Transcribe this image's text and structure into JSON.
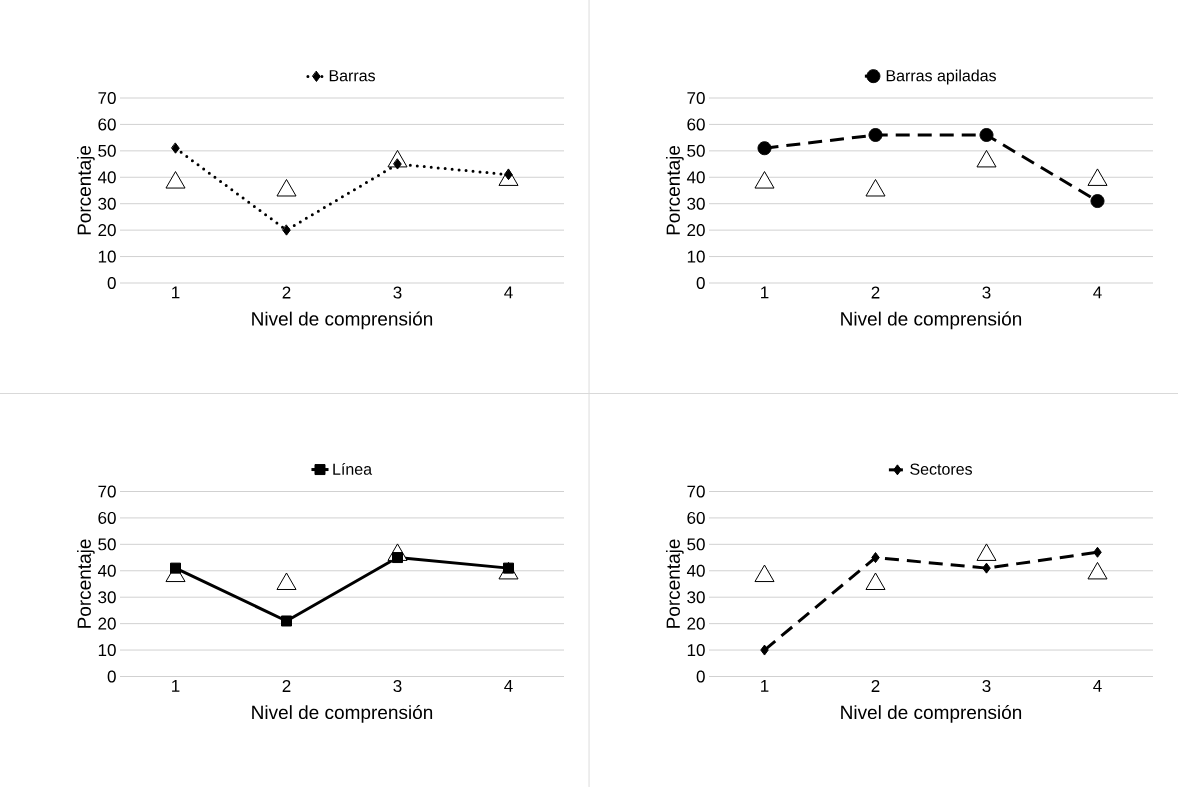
{
  "chart_data": [
    {
      "type": "line",
      "categories": [
        "1",
        "2",
        "3",
        "4"
      ],
      "xlabel": "Nivel de comprensión",
      "ylabel": "Porcentaje",
      "ylim": [
        0,
        70
      ],
      "yticks": [
        0,
        10,
        20,
        30,
        40,
        50,
        60,
        70
      ],
      "grid": "y",
      "legend": "top",
      "series": [
        {
          "type": "scatter",
          "color": "#000000",
          "marker": "triangle",
          "values": [
            38,
            35,
            46,
            39
          ]
        },
        {
          "name": "Barras",
          "color": "#000000",
          "marker": "diamond",
          "line_style": "dotted",
          "values": [
            51,
            20,
            45,
            41
          ]
        }
      ]
    },
    {
      "type": "line",
      "categories": [
        "1",
        "2",
        "3",
        "4"
      ],
      "xlabel": "Nivel de comprensión",
      "ylabel": "Porcentaje",
      "ylim": [
        0,
        70
      ],
      "yticks": [
        0,
        10,
        20,
        30,
        40,
        50,
        60,
        70
      ],
      "grid": "y",
      "legend": "top",
      "series": [
        {
          "type": "scatter",
          "color": "#000000",
          "marker": "triangle",
          "values": [
            38,
            35,
            46,
            39
          ]
        },
        {
          "name": "Barras apiladas",
          "color": "#000000",
          "marker": "circle",
          "line_style": "dashed",
          "values": [
            51,
            56,
            56,
            31
          ]
        }
      ]
    },
    {
      "type": "line",
      "categories": [
        "1",
        "2",
        "3",
        "4"
      ],
      "xlabel": "Nivel de comprensión",
      "ylabel": "Porcentaje",
      "ylim": [
        0,
        70
      ],
      "yticks": [
        0,
        10,
        20,
        30,
        40,
        50,
        60,
        70
      ],
      "grid": "y",
      "legend": "top",
      "series": [
        {
          "type": "scatter",
          "color": "#000000",
          "marker": "triangle",
          "values": [
            38,
            35,
            46,
            39
          ]
        },
        {
          "name": "Línea",
          "color": "#000000",
          "marker": "square",
          "line_style": "solid",
          "values": [
            41,
            21,
            45,
            41
          ]
        }
      ]
    },
    {
      "type": "line",
      "categories": [
        "1",
        "2",
        "3",
        "4"
      ],
      "xlabel": "Nivel de comprensión",
      "ylabel": "Porcentaje",
      "ylim": [
        0,
        70
      ],
      "yticks": [
        0,
        10,
        20,
        30,
        40,
        50,
        60,
        70
      ],
      "grid": "y",
      "legend": "top",
      "series": [
        {
          "type": "scatter",
          "color": "#000000",
          "marker": "triangle",
          "values": [
            38,
            35,
            46,
            39
          ]
        },
        {
          "name": "Sectores",
          "color": "#000000",
          "marker": "diamond",
          "line_style": "dashed",
          "values": [
            10,
            45,
            41,
            47
          ]
        }
      ]
    }
  ]
}
